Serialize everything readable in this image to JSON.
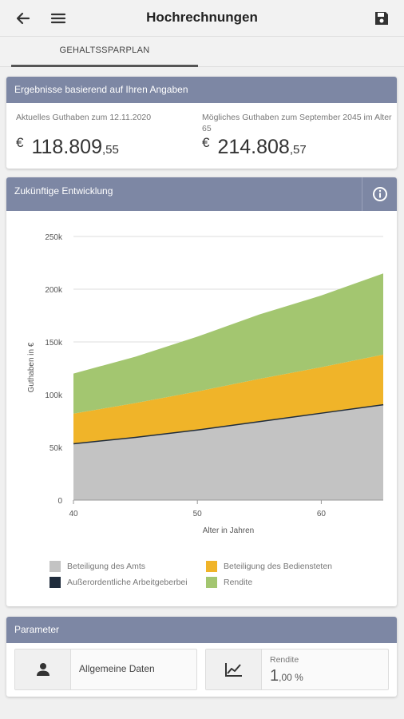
{
  "header": {
    "title": "Hochrechnungen",
    "back_icon": "arrow-left-icon",
    "menu_icon": "hamburger-icon",
    "save_icon": "floppy-disk-icon"
  },
  "tabs": [
    {
      "label": "GEHALTSSPARPLAN",
      "active": true
    }
  ],
  "results": {
    "title": "Ergebnisse basierend auf Ihren Angaben",
    "current": {
      "label": "Aktuelles Guthaben zum 12.11.2020",
      "currency": "€",
      "main": "118.809",
      "cents": ",55"
    },
    "possible": {
      "label": "Mögliches Guthaben zum September 2045 im Alter 65",
      "currency": "€",
      "main": "214.808",
      "cents": ",57"
    }
  },
  "development": {
    "title": "Zukünftige Entwicklung",
    "info_icon": "info-circle-icon"
  },
  "chart_data": {
    "type": "area",
    "stacked": true,
    "xlabel": "Alter in Jahren",
    "ylabel": "Guthaben in €",
    "xlim": [
      40,
      65
    ],
    "ylim": [
      0,
      250000
    ],
    "x_ticks": [
      "40",
      "50",
      "60"
    ],
    "y_ticks": [
      "0",
      "50k",
      "100k",
      "150k",
      "200k",
      "250k"
    ],
    "grid": true,
    "legend_position": "bottom",
    "x": [
      40,
      45,
      50,
      55,
      60,
      65
    ],
    "series": [
      {
        "name": "Beteiligung des Amts",
        "color": "#c3c3c3",
        "values": [
          54000,
          60000,
          67000,
          75000,
          83000,
          91000
        ]
      },
      {
        "name": "Außerordentliche Arbeitgeberbei",
        "color": "#1f2c3c",
        "values": [
          0,
          0,
          0,
          0,
          0,
          0
        ]
      },
      {
        "name": "Beteiligung des Bediensteten",
        "color": "#f0b429",
        "values": [
          28000,
          32000,
          36000,
          40000,
          43000,
          47000
        ]
      },
      {
        "name": "Rendite",
        "color": "#a3c670",
        "values": [
          38000,
          44000,
          52000,
          61000,
          68000,
          77000
        ]
      }
    ],
    "legend_order": [
      0,
      2,
      1,
      3
    ]
  },
  "parameters": {
    "title": "Parameter",
    "general": {
      "label": "Allgemeine Daten",
      "icon": "person-icon"
    },
    "yield": {
      "label": "Rendite",
      "value_main": "1",
      "value_rest": ",00 %",
      "icon": "line-chart-icon"
    }
  }
}
